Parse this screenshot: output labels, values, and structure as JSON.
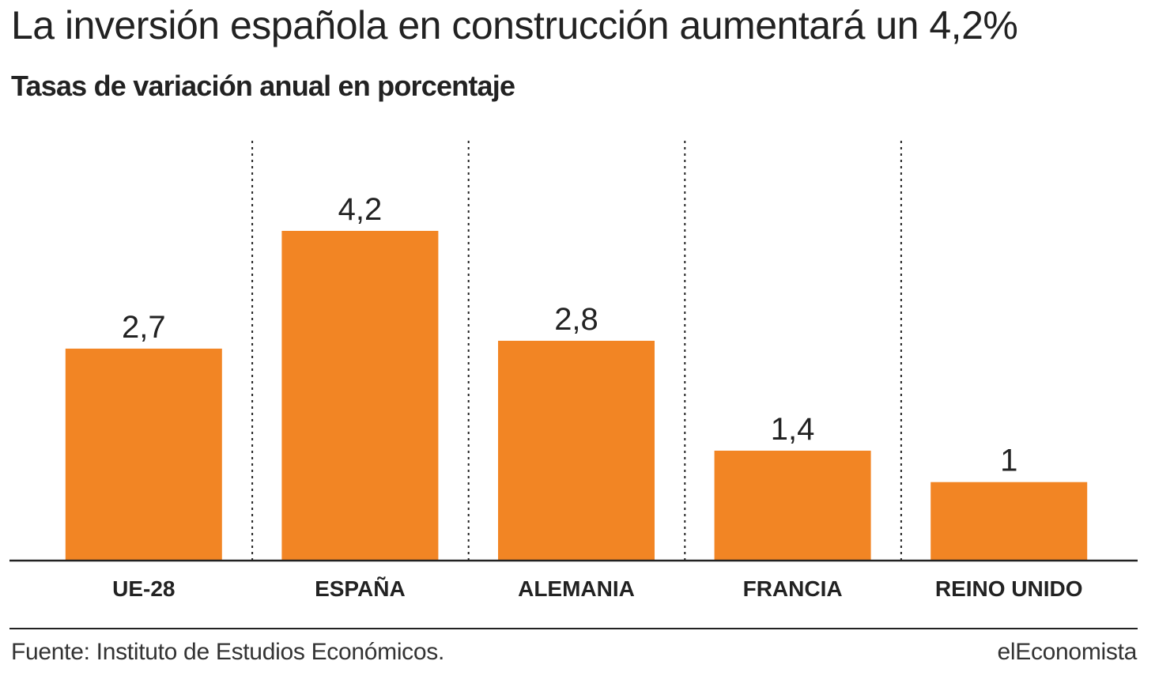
{
  "chart_data": {
    "type": "bar",
    "title": "La inversión española en construcción aumentará un 4,2%",
    "subtitle": "Tasas de variación anual en porcentaje",
    "categories": [
      "UE-28",
      "ESPAÑA",
      "ALEMANIA",
      "FRANCIA",
      "REINO UNIDO"
    ],
    "values": [
      2.7,
      4.2,
      2.8,
      1.4,
      1
    ],
    "value_labels": [
      "2,7",
      "4,2",
      "2,8",
      "1,4",
      "1"
    ],
    "ylim": [
      0,
      4.2
    ],
    "grid": false,
    "legend": "none",
    "colors": {
      "bar": "#F28524",
      "text": "#222222",
      "axis": "#222222",
      "separator": "#222222"
    }
  },
  "source": "Fuente: Instituto de Estudios Económicos.",
  "brand": "elEconomista"
}
